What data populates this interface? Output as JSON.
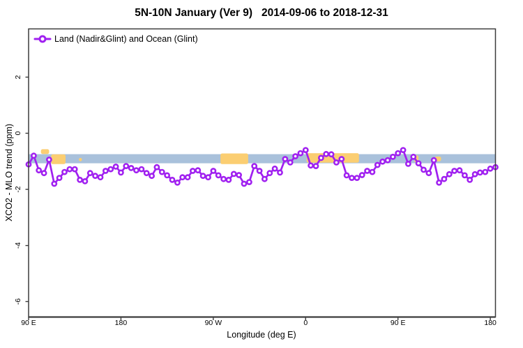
{
  "window": {
    "description": "Static R-style longitude plot of satellite XCO2 anomaly"
  },
  "colors": {
    "series_purple": "#A020F0",
    "reference_band_blue": "#A9C1DB",
    "highlight_yellow": "#FBCE72",
    "axis_line": "#3c3c3c",
    "text": "#000000",
    "background": "#ffffff",
    "marker_fill": "#ffffff"
  },
  "chart_data": {
    "type": "line",
    "title": "5N-10N January (Ver 9)   2014-09-06 to 2018-12-31",
    "xlabel": "Longitude (deg E)",
    "ylabel": "XCO2 - MLO trend (ppm)",
    "xlim": [
      90,
      545
    ],
    "ylim": [
      -6.55,
      3.72
    ],
    "grid": false,
    "legend_position": "top-left-inside",
    "x_axis_note": "longitude wraps eastward: 90E to 180 to 90W to 0 to 90E to 180",
    "x_ticks": [
      {
        "v": 90,
        "label": "90 E"
      },
      {
        "v": 180,
        "label": "180"
      },
      {
        "v": 270,
        "label": "90 W"
      },
      {
        "v": 360,
        "label": "0"
      },
      {
        "v": 450,
        "label": "90 E"
      },
      {
        "v": 540,
        "label": "180"
      }
    ],
    "y_ticks": [
      {
        "v": 2,
        "label": "2"
      },
      {
        "v": 0,
        "label": "0"
      },
      {
        "v": -2,
        "label": "-2"
      },
      {
        "v": -4,
        "label": "-4"
      },
      {
        "v": -6,
        "label": "-6"
      }
    ],
    "series": [
      {
        "name": "Land (Nadir&Glint) and Ocean (Glint)",
        "marker": "open-circle",
        "color": "#A020F0",
        "x_start_deg": 90,
        "x_step_deg": 5,
        "values": [
          -1.11,
          -0.8,
          -1.32,
          -1.42,
          -0.94,
          -1.8,
          -1.59,
          -1.38,
          -1.28,
          -1.28,
          -1.66,
          -1.71,
          -1.42,
          -1.52,
          -1.57,
          -1.34,
          -1.28,
          -1.19,
          -1.4,
          -1.17,
          -1.24,
          -1.32,
          -1.28,
          -1.42,
          -1.52,
          -1.21,
          -1.38,
          -1.5,
          -1.66,
          -1.76,
          -1.57,
          -1.57,
          -1.34,
          -1.32,
          -1.52,
          -1.57,
          -1.34,
          -1.5,
          -1.63,
          -1.66,
          -1.45,
          -1.49,
          -1.8,
          -1.74,
          -1.17,
          -1.34,
          -1.63,
          -1.42,
          -1.26,
          -1.4,
          -0.92,
          -1.04,
          -0.82,
          -0.71,
          -0.6,
          -1.15,
          -1.17,
          -0.88,
          -0.74,
          -0.75,
          -1.04,
          -0.92,
          -1.5,
          -1.59,
          -1.59,
          -1.49,
          -1.34,
          -1.38,
          -1.13,
          -1.01,
          -0.96,
          -0.84,
          -0.71,
          -0.6,
          -1.09,
          -0.84,
          -1.07,
          -1.3,
          -1.42,
          -0.96,
          -1.76,
          -1.63,
          -1.46,
          -1.34,
          -1.32,
          -1.5,
          -1.66,
          -1.46,
          -1.4,
          -1.38,
          -1.26,
          -1.21
        ]
      }
    ],
    "reference_band": {
      "ymin": -1.07,
      "ymax": -0.745,
      "color": "#A9C1DB",
      "note": "horizontal pale-blue band spanning the full longitude range"
    },
    "highlight_patches": {
      "color": "#FBCE72",
      "note": "irregular yellow patches drawn over the blue band, regions as [x1_deg, x2_deg, y_top_ppm, y_bottom_ppm]",
      "regions": [
        [
          102,
          110,
          -0.57,
          -0.74
        ],
        [
          112,
          126,
          -0.75,
          -1.1
        ],
        [
          139,
          142,
          -0.88,
          -1.0
        ],
        [
          277,
          304,
          -0.72,
          -1.1
        ],
        [
          361,
          412,
          -0.71,
          -1.05
        ],
        [
          466,
          470,
          -0.79,
          -1.04
        ],
        [
          486,
          492,
          -0.83,
          -1.0
        ]
      ]
    }
  }
}
